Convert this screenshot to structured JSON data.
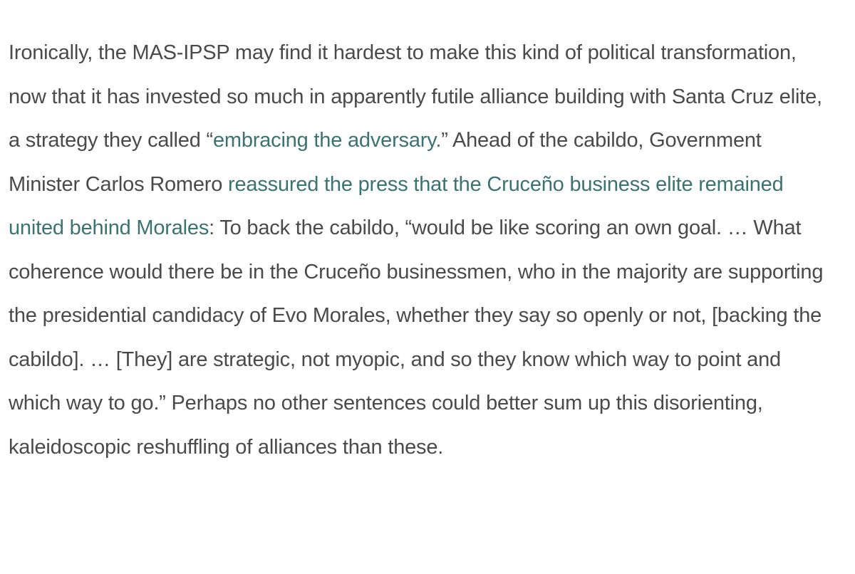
{
  "article": {
    "paragraph": {
      "t1": "Ironically, the MAS-IPSP may find it hardest to make this kind of political transformation, now that it has invested so much in apparently futile alliance building with Santa Cruz elite, a strategy they called “",
      "link1": "embracing the adversary.",
      "t2": "” Ahead of the cabildo, Government Minister Carlos Romero ",
      "link2": "reassured the press that the Cruceño business elite remained united behind Morales",
      "t3": ": To back the cabildo, “would be like scoring an own goal. … What coherence would there be in the Cruceño businessmen, who in the majority are supporting the presidential candidacy of Evo Morales, whether they say so openly or not, [backing the cabildo]. … [They] are strategic, not myopic, and so they know which way to point and which way to go.” Perhaps no other sentences could better sum up this disorienting, kaleidoscopic reshuffling of alliances than these."
    },
    "colors": {
      "text": "#4a4a4a",
      "link": "#3b7272",
      "background": "#ffffff"
    }
  }
}
